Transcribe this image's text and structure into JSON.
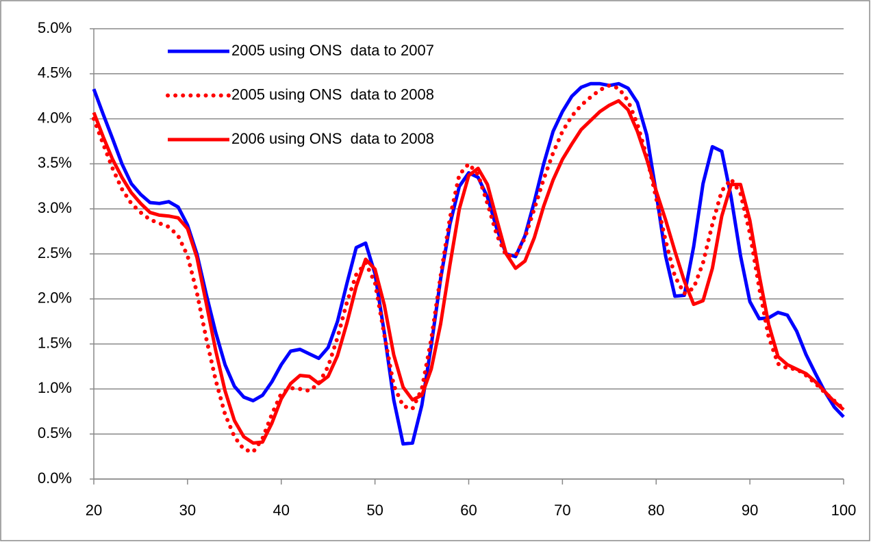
{
  "chart_data": {
    "type": "line",
    "x": [
      20,
      21,
      22,
      23,
      24,
      25,
      26,
      27,
      28,
      29,
      30,
      31,
      32,
      33,
      34,
      35,
      36,
      37,
      38,
      39,
      40,
      41,
      42,
      43,
      44,
      45,
      46,
      47,
      48,
      49,
      50,
      51,
      52,
      53,
      54,
      55,
      56,
      57,
      58,
      59,
      60,
      61,
      62,
      63,
      64,
      65,
      66,
      67,
      68,
      69,
      70,
      71,
      72,
      73,
      74,
      75,
      76,
      77,
      78,
      79,
      80,
      81,
      82,
      83,
      84,
      85,
      86,
      87,
      88,
      89,
      90,
      91,
      92,
      93,
      94,
      95,
      96,
      97,
      98,
      99,
      100
    ],
    "series": [
      {
        "name": "2005 using ONS  data to 2007",
        "color": "#0000ff",
        "style": "solid",
        "values": [
          4.33,
          4.05,
          3.78,
          3.5,
          3.28,
          3.16,
          3.07,
          3.06,
          3.08,
          3.02,
          2.82,
          2.5,
          2.05,
          1.63,
          1.27,
          1.03,
          0.91,
          0.87,
          0.93,
          1.08,
          1.27,
          1.42,
          1.44,
          1.39,
          1.34,
          1.46,
          1.75,
          2.17,
          2.57,
          2.62,
          2.28,
          1.62,
          0.88,
          0.39,
          0.4,
          0.82,
          1.48,
          2.22,
          2.83,
          3.25,
          3.4,
          3.35,
          3.13,
          2.78,
          2.5,
          2.47,
          2.7,
          3.08,
          3.5,
          3.86,
          4.08,
          4.25,
          4.35,
          4.39,
          4.39,
          4.37,
          4.39,
          4.34,
          4.18,
          3.82,
          3.18,
          2.48,
          2.03,
          2.04,
          2.58,
          3.28,
          3.69,
          3.64,
          3.13,
          2.48,
          1.97,
          1.78,
          1.79,
          1.85,
          1.82,
          1.64,
          1.38,
          1.17,
          0.97,
          0.8,
          0.69
        ]
      },
      {
        "name": "2005 using ONS  data to 2008",
        "color": "#ff0000",
        "style": "dotted",
        "values": [
          4.0,
          3.72,
          3.45,
          3.22,
          3.06,
          2.96,
          2.88,
          2.84,
          2.8,
          2.7,
          2.48,
          2.07,
          1.56,
          1.1,
          0.72,
          0.47,
          0.33,
          0.3,
          0.45,
          0.72,
          0.95,
          1.01,
          1.0,
          0.98,
          1.06,
          1.25,
          1.57,
          1.96,
          2.27,
          2.4,
          2.18,
          1.6,
          1.04,
          0.81,
          0.78,
          1.0,
          1.55,
          2.25,
          2.9,
          3.38,
          3.5,
          3.38,
          3.06,
          2.71,
          2.48,
          2.48,
          2.68,
          3.0,
          3.33,
          3.62,
          3.86,
          4.03,
          4.15,
          4.24,
          4.32,
          4.37,
          4.34,
          4.2,
          3.94,
          3.58,
          3.12,
          2.65,
          2.25,
          2.06,
          2.12,
          2.4,
          2.83,
          3.2,
          3.33,
          3.17,
          2.73,
          2.12,
          1.58,
          1.28,
          1.23,
          1.22,
          1.15,
          1.06,
          0.96,
          0.87,
          0.78
        ]
      },
      {
        "name": "2006 using ONS  data to 2008",
        "color": "#ff0000",
        "style": "solid",
        "values": [
          4.07,
          3.8,
          3.55,
          3.35,
          3.18,
          3.06,
          2.96,
          2.93,
          2.92,
          2.9,
          2.78,
          2.46,
          1.95,
          1.43,
          0.98,
          0.65,
          0.47,
          0.4,
          0.41,
          0.62,
          0.89,
          1.06,
          1.15,
          1.14,
          1.06,
          1.14,
          1.37,
          1.73,
          2.14,
          2.44,
          2.33,
          1.93,
          1.38,
          1.02,
          0.88,
          0.93,
          1.22,
          1.72,
          2.38,
          3.0,
          3.37,
          3.45,
          3.27,
          2.88,
          2.5,
          2.34,
          2.42,
          2.68,
          3.03,
          3.32,
          3.55,
          3.72,
          3.88,
          3.98,
          4.08,
          4.15,
          4.2,
          4.1,
          3.86,
          3.55,
          3.2,
          2.88,
          2.53,
          2.2,
          1.94,
          1.98,
          2.34,
          2.92,
          3.27,
          3.27,
          2.87,
          2.26,
          1.72,
          1.36,
          1.27,
          1.22,
          1.17,
          1.08,
          0.97,
          0.86,
          0.77
        ]
      }
    ],
    "xlim": [
      20,
      100
    ],
    "xticks": [
      20,
      30,
      40,
      50,
      60,
      70,
      80,
      90,
      100
    ],
    "ylim": [
      0,
      5
    ],
    "yticks": [
      {
        "value": 0,
        "label": "0.0%"
      },
      {
        "value": 0.5,
        "label": "0.5%"
      },
      {
        "value": 1,
        "label": "1.0%"
      },
      {
        "value": 1.5,
        "label": "1.5%"
      },
      {
        "value": 2,
        "label": "2.0%"
      },
      {
        "value": 2.5,
        "label": "2.5%"
      },
      {
        "value": 3,
        "label": "3.0%"
      },
      {
        "value": 3.5,
        "label": "3.5%"
      },
      {
        "value": 4,
        "label": "4.0%"
      },
      {
        "value": 4.5,
        "label": "4.5%"
      },
      {
        "value": 5,
        "label": "5.0%"
      }
    ],
    "grid": true,
    "legend": "upper-left"
  }
}
